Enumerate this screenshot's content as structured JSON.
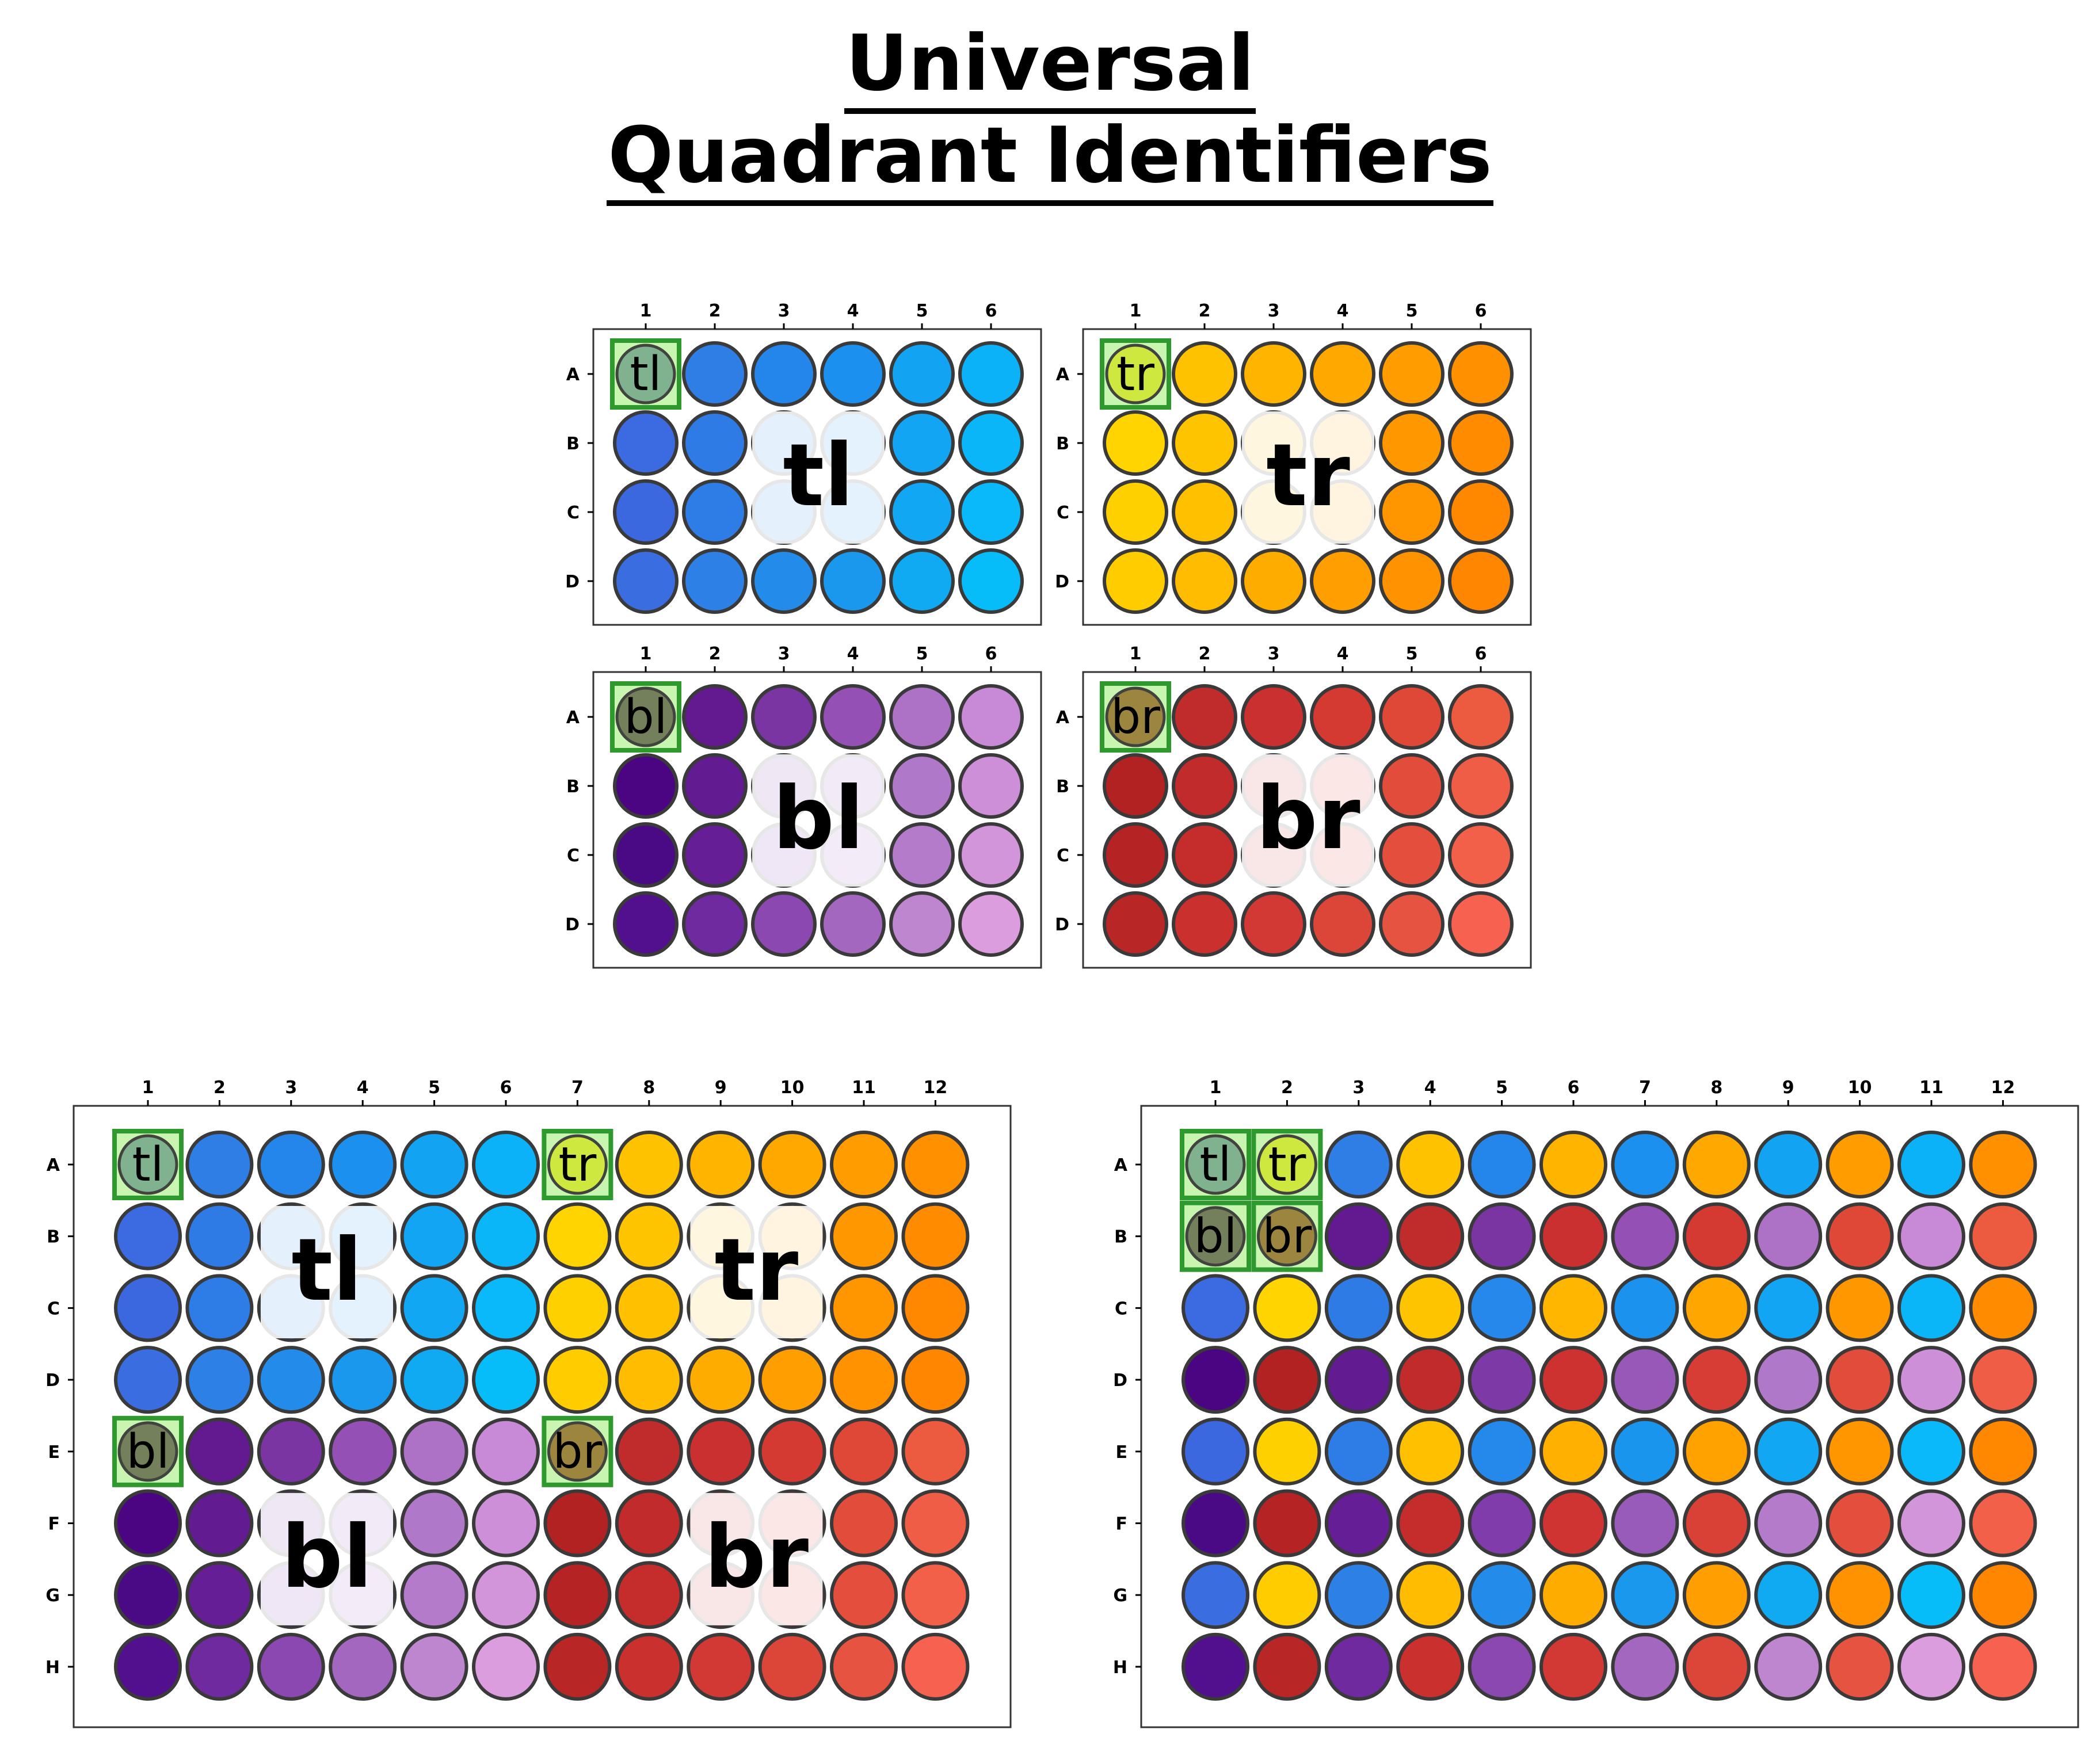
{
  "title": {
    "line1": "Universal",
    "line2": "Quadrant Identifiers"
  },
  "row_labels_small": [
    "A",
    "B",
    "C",
    "D"
  ],
  "col_labels_small": [
    "1",
    "2",
    "3",
    "4",
    "5",
    "6"
  ],
  "row_labels_large": [
    "A",
    "B",
    "C",
    "D",
    "E",
    "F",
    "G",
    "H"
  ],
  "col_labels_large": [
    "1",
    "2",
    "3",
    "4",
    "5",
    "6",
    "7",
    "8",
    "9",
    "10",
    "11",
    "12"
  ],
  "colors": {
    "tl": [
      [
        "#3a75e0",
        "#2f7ee6",
        "#2486ea",
        "#1b90ee",
        "#12a3f3",
        "#0bb2f8"
      ],
      [
        "#3c6ae0",
        "#2f7be6",
        "#2688ea",
        "#1b93ee",
        "#12a5f3",
        "#0ab6f8"
      ],
      [
        "#3b68df",
        "#2e7de6",
        "#2489ea",
        "#1a95ee",
        "#11a7f3",
        "#09b9f9"
      ],
      [
        "#3a6de0",
        "#2d80e6",
        "#238cea",
        "#1a98ee",
        "#10aaf3",
        "#07bdf9"
      ]
    ],
    "tr": [
      [
        "#ffd200",
        "#ffc200",
        "#ffb400",
        "#ffa800",
        "#ff9c00",
        "#ff9000"
      ],
      [
        "#ffd400",
        "#ffc400",
        "#ffb600",
        "#ffa600",
        "#ff9800",
        "#ff8c00"
      ],
      [
        "#ffd000",
        "#ffc000",
        "#ffb000",
        "#ffa200",
        "#ff9600",
        "#ff8800"
      ],
      [
        "#ffcc00",
        "#ffbc00",
        "#ffac00",
        "#ff9e00",
        "#ff9200",
        "#ff8600"
      ]
    ],
    "bl": [
      [
        "#4b0a7e",
        "#63198f",
        "#7b35a3",
        "#9550b5",
        "#ad72c6",
        "#c88ad6"
      ],
      [
        "#4b0582",
        "#631b92",
        "#7d39a6",
        "#9758b8",
        "#b078c9",
        "#cd8fd7"
      ],
      [
        "#4a0a86",
        "#651e96",
        "#7f3caa",
        "#985bba",
        "#b47bcb",
        "#d295da"
      ],
      [
        "#520f8e",
        "#6e2a9e",
        "#8a48b0",
        "#a467c0",
        "#be86cf",
        "#dc9ddf"
      ]
    ],
    "br": [
      [
        "#b0242a",
        "#c02c2c",
        "#cb3030",
        "#d43a32",
        "#df4836",
        "#ec5a40"
      ],
      [
        "#b22222",
        "#c22b2b",
        "#cd3130",
        "#d73d34",
        "#e24c3a",
        "#f05d46"
      ],
      [
        "#b52324",
        "#c52d2d",
        "#cf3432",
        "#d94036",
        "#e44f3d",
        "#f3604a"
      ],
      [
        "#b92626",
        "#c9302e",
        "#d33934",
        "#dc4639",
        "#e75341",
        "#f6624f"
      ]
    ]
  },
  "markers": {
    "tl": "tl",
    "tr": "tr",
    "bl": "bl",
    "br": "br"
  },
  "overlay_colors": {
    "tl_marker": "#7daf8f",
    "tr_marker": "#cfe83a",
    "bl_marker": "#6f7a57",
    "br_marker": "#9a8038",
    "marker_border": "#2e9a2e",
    "marker_fill_light": "#c8f5b0",
    "quadrant_overlay": "#ffffff"
  }
}
